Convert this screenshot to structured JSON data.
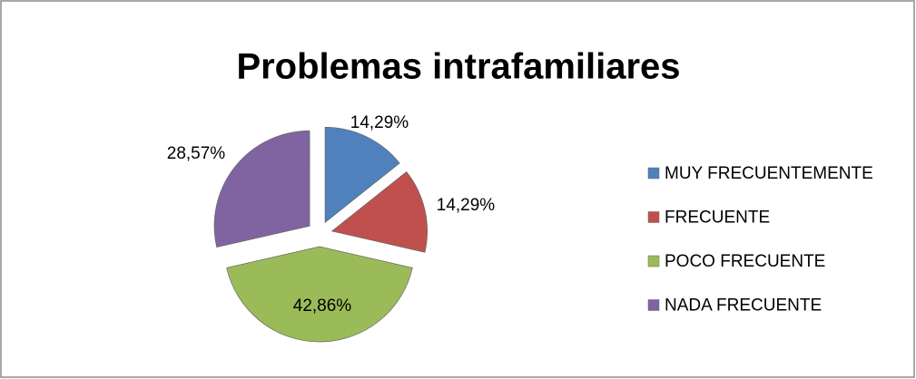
{
  "chart_data": {
    "type": "pie",
    "title": "Problemas intrafamiliares",
    "categories": [
      "MUY FRECUENTEMENTE",
      "FRECUENTE",
      "POCO FRECUENTE",
      "NADA FRECUENTE"
    ],
    "values": [
      14.29,
      14.29,
      42.86,
      28.57
    ],
    "value_labels": [
      "14,29%",
      "14,29%",
      "42,86%",
      "28,57%"
    ],
    "colors": [
      "#4f81bd",
      "#c0504d",
      "#9bbb59",
      "#8064a2"
    ],
    "legend": "right"
  }
}
